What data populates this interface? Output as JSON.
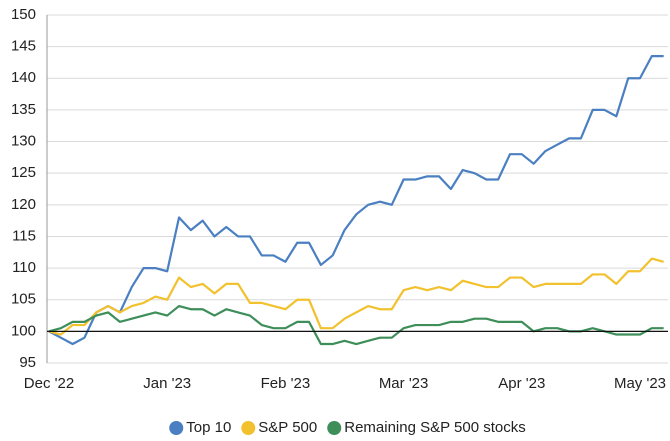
{
  "chart_data": {
    "type": "line",
    "categories": [
      "Dec '22",
      null,
      null,
      null,
      null,
      null,
      null,
      null,
      null,
      null,
      "Jan '23",
      null,
      null,
      null,
      null,
      null,
      null,
      null,
      null,
      null,
      "Feb '23",
      null,
      null,
      null,
      null,
      null,
      null,
      null,
      null,
      null,
      "Mar '23",
      null,
      null,
      null,
      null,
      null,
      null,
      null,
      null,
      null,
      "Apr '23",
      null,
      null,
      null,
      null,
      null,
      null,
      null,
      null,
      null,
      "May '23",
      null,
      null
    ],
    "series": [
      {
        "name": "Top 10",
        "color": "#4a7fc1",
        "values": [
          100,
          99,
          98,
          99,
          103,
          104,
          103,
          107,
          110,
          110,
          109.5,
          118,
          116,
          117.5,
          115,
          116.5,
          115,
          115,
          112,
          112,
          111,
          114,
          114,
          110.5,
          112,
          116,
          118.5,
          120,
          120.5,
          120,
          124,
          124,
          124.5,
          124.5,
          122.5,
          125.5,
          125,
          124,
          124,
          128,
          128,
          126.5,
          128.5,
          129.5,
          130.5,
          130.5,
          135,
          135,
          134,
          140,
          140,
          143.5,
          143.5
        ]
      },
      {
        "name": "S&P 500",
        "color": "#f2c12e",
        "values": [
          100,
          99.5,
          101,
          101,
          103,
          104,
          103,
          104,
          104.5,
          105.5,
          105,
          108.5,
          107,
          107.5,
          106,
          107.5,
          107.5,
          104.5,
          104.5,
          104,
          103.5,
          105,
          105,
          100.5,
          100.5,
          102,
          103,
          104,
          103.5,
          103.5,
          106.5,
          107,
          106.5,
          107,
          106.5,
          108,
          107.5,
          107,
          107,
          108.5,
          108.5,
          107,
          107.5,
          107.5,
          107.5,
          107.5,
          109,
          109,
          107.5,
          109.5,
          109.5,
          111.5,
          111
        ]
      },
      {
        "name": "Remaining S&P 500 stocks",
        "color": "#3e8e5a",
        "values": [
          100,
          100.5,
          101.5,
          101.5,
          102.5,
          103,
          101.5,
          102,
          102.5,
          103,
          102.5,
          104,
          103.5,
          103.5,
          102.5,
          103.5,
          103,
          102.5,
          101,
          100.5,
          100.5,
          101.5,
          101.5,
          98,
          98,
          98.5,
          98,
          98.5,
          99,
          99,
          100.5,
          101,
          101,
          101,
          101.5,
          101.5,
          102,
          102,
          101.5,
          101.5,
          101.5,
          100,
          100.5,
          100.5,
          100,
          100,
          100.5,
          100,
          99.5,
          99.5,
          99.5,
          100.5,
          100.5
        ]
      }
    ],
    "ylim": [
      95,
      150
    ],
    "yticks": [
      95,
      100,
      105,
      110,
      115,
      120,
      125,
      130,
      135,
      140,
      145,
      150
    ],
    "baseline": 100,
    "grid": true,
    "legend": "bottom"
  }
}
